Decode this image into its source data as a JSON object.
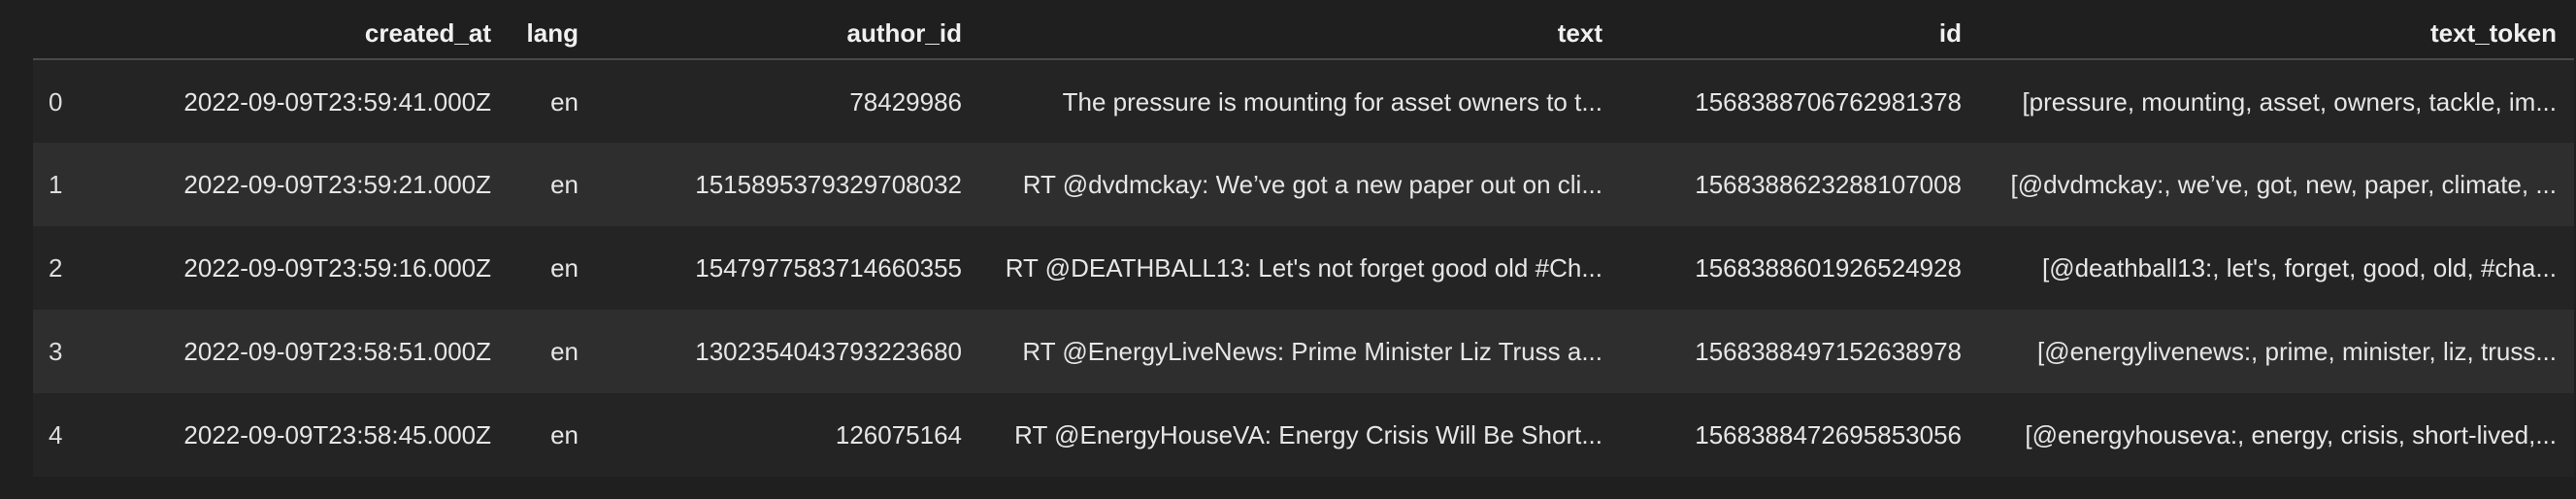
{
  "table": {
    "columns": [
      {
        "key": "idx",
        "label": ""
      },
      {
        "key": "created_at",
        "label": "created_at"
      },
      {
        "key": "lang",
        "label": "lang"
      },
      {
        "key": "author_id",
        "label": "author_id"
      },
      {
        "key": "text",
        "label": "text"
      },
      {
        "key": "id",
        "label": "id"
      },
      {
        "key": "text_token",
        "label": "text_token"
      }
    ],
    "rows": [
      {
        "idx": "0",
        "created_at": "2022-09-09T23:59:41.000Z",
        "lang": "en",
        "author_id": "78429986",
        "text": "The pressure is mounting for asset owners to t...",
        "id": "1568388706762981378",
        "text_token": "[pressure, mounting, asset, owners, tackle, im..."
      },
      {
        "idx": "1",
        "created_at": "2022-09-09T23:59:21.000Z",
        "lang": "en",
        "author_id": "1515895379329708032",
        "text": "RT @dvdmckay: We’ve got a new paper out on cli...",
        "id": "1568388623288107008",
        "text_token": "[@dvdmckay:, we’ve, got, new, paper, climate, ..."
      },
      {
        "idx": "2",
        "created_at": "2022-09-09T23:59:16.000Z",
        "lang": "en",
        "author_id": "1547977583714660355",
        "text": "RT @DEATHBALL13: Let's not forget good old #Ch...",
        "id": "1568388601926524928",
        "text_token": "[@deathball13:, let's, forget, good, old, #cha..."
      },
      {
        "idx": "3",
        "created_at": "2022-09-09T23:58:51.000Z",
        "lang": "en",
        "author_id": "1302354043793223680",
        "text": "RT @EnergyLiveNews: Prime Minister Liz Truss a...",
        "id": "1568388497152638978",
        "text_token": "[@energylivenews:, prime, minister, liz, truss..."
      },
      {
        "idx": "4",
        "created_at": "2022-09-09T23:58:45.000Z",
        "lang": "en",
        "author_id": "126075164",
        "text": "RT @EnergyHouseVA: Energy Crisis Will Be Short...",
        "id": "1568388472695853056",
        "text_token": "[@energyhouseva:, energy, crisis, short-lived,..."
      }
    ]
  }
}
